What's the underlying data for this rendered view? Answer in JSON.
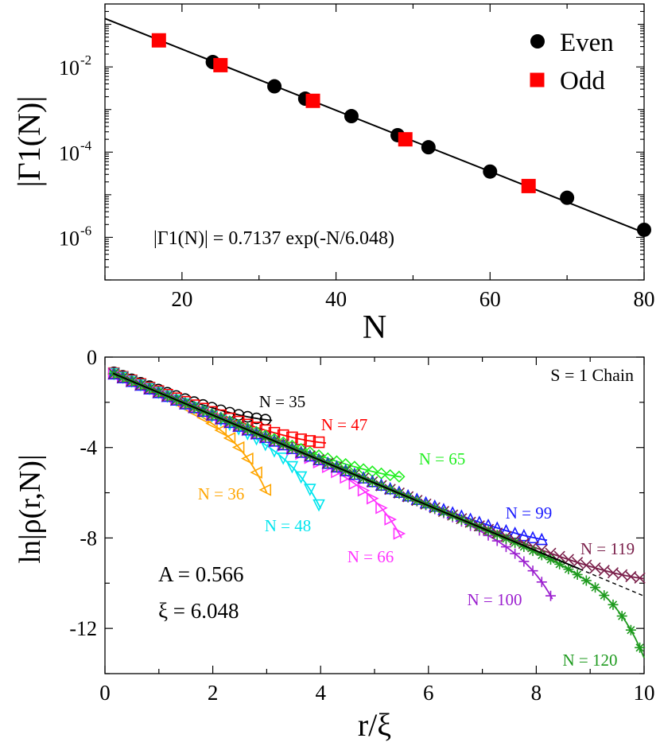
{
  "chart_data": [
    {
      "type": "scatter",
      "xlabel": "N",
      "ylabel": "|Γ1(N)|",
      "yscale": "log",
      "xlim": [
        10,
        80
      ],
      "ylim": [
        1e-07,
        0.3
      ],
      "x_ticks": [
        20,
        40,
        60,
        80
      ],
      "x_tick_labels": [
        "20",
        "40",
        "60",
        "80"
      ],
      "y_ticks": [
        1e-06,
        0.0001,
        0.01
      ],
      "y_tick_labels": [
        {
          "base": "10",
          "exp": "-6"
        },
        {
          "base": "10",
          "exp": "-4"
        },
        {
          "base": "10",
          "exp": "-2"
        }
      ],
      "legend": {
        "placement": "top-right",
        "entries": [
          "Even",
          "Odd"
        ]
      },
      "annotation": "|Γ1(N)| = 0.7137 exp(-N/6.048)",
      "fit": {
        "amplitude": 0.7137,
        "xi": 6.048
      },
      "series": [
        {
          "name": "Even",
          "marker": "circle",
          "color": "#000000",
          "x": [
            24,
            32,
            36,
            42,
            48,
            52,
            60,
            70,
            80
          ],
          "y": [
            0.013,
            0.0035,
            0.0018,
            0.0007,
            0.00025,
            0.00013,
            3.5e-05,
            8.5e-06,
            1.5e-06
          ]
        },
        {
          "name": "Odd",
          "marker": "square",
          "color": "#ff0000",
          "x": [
            17,
            25,
            37,
            49,
            65
          ],
          "y": [
            0.042,
            0.011,
            0.0016,
            0.0002,
            1.6e-05
          ]
        }
      ]
    },
    {
      "type": "line",
      "xlabel": "r/ξ",
      "ylabel": "ln|ρ(r,N)|",
      "xlim": [
        0,
        10
      ],
      "ylim": [
        -14,
        0
      ],
      "x_ticks": [
        0,
        2,
        4,
        6,
        8,
        10
      ],
      "x_tick_labels": [
        "0",
        "2",
        "4",
        "6",
        "8",
        "10"
      ],
      "y_ticks": [
        0,
        -4,
        -8,
        -12
      ],
      "y_tick_labels": [
        "0",
        "-4",
        "-8",
        "-12"
      ],
      "title": "S = 1 Chain",
      "params": [
        "A = 0.566",
        "ξ = 6.048"
      ],
      "fit": {
        "A": 0.566,
        "xi": 6.048
      },
      "series": [
        {
          "name": "N = 35",
          "color": "#000000",
          "marker": "circle",
          "rmax": 3.1,
          "end_y": -2.8,
          "parity": "odd"
        },
        {
          "name": "N = 36",
          "color": "#ffa500",
          "marker": "tri-left",
          "rmax": 3.0,
          "end_y": -6.0,
          "parity": "even"
        },
        {
          "name": "N = 47",
          "color": "#ff0000",
          "marker": "square",
          "rmax": 4.1,
          "end_y": -3.8,
          "parity": "odd"
        },
        {
          "name": "N = 48",
          "color": "#00e5ee",
          "marker": "tri-down",
          "rmax": 4.0,
          "end_y": -6.7,
          "parity": "even"
        },
        {
          "name": "N = 65",
          "color": "#22ee22",
          "marker": "diamond",
          "rmax": 5.5,
          "end_y": -5.3,
          "parity": "odd"
        },
        {
          "name": "N = 66",
          "color": "#ff33ff",
          "marker": "tri-right",
          "rmax": 5.5,
          "end_y": -8.0,
          "parity": "even"
        },
        {
          "name": "N = 99",
          "color": "#1a1aff",
          "marker": "tri-up",
          "rmax": 8.2,
          "end_y": -8.1,
          "parity": "odd"
        },
        {
          "name": "N = 100",
          "color": "#9b1fcf",
          "marker": "plus",
          "rmax": 8.3,
          "end_y": -10.7,
          "parity": "even"
        },
        {
          "name": "N = 119",
          "color": "#7a1f4a",
          "marker": "x",
          "rmax": 10.0,
          "end_y": -9.8,
          "parity": "odd"
        },
        {
          "name": "N = 120",
          "color": "#1e9a1e",
          "marker": "star",
          "rmax": 10.0,
          "end_y": -13.3,
          "parity": "even"
        }
      ]
    }
  ]
}
